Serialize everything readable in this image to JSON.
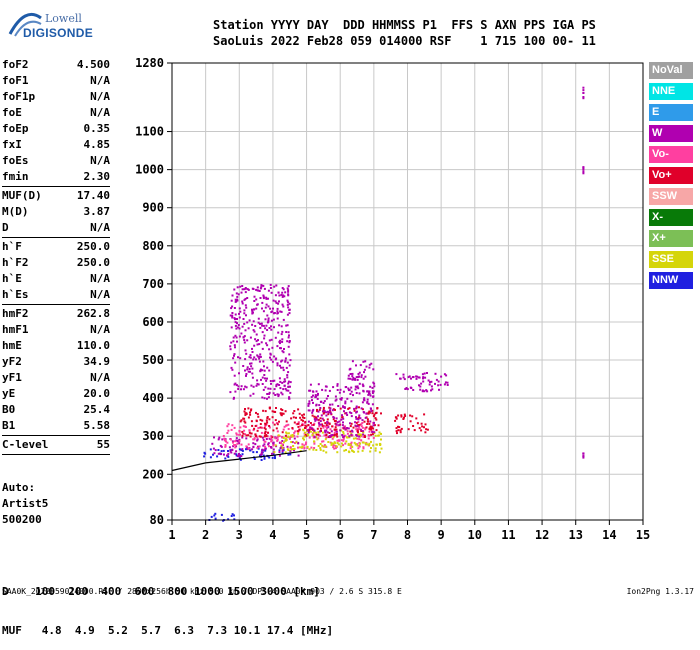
{
  "logo": {
    "line1": "Lowell",
    "line2": "DIGISONDE"
  },
  "header": {
    "line1": "Station YYYY DAY  DDD HHMMSS P1  FFS S AXN PPS IGA PS",
    "line2": "SaoLuis 2022 Feb28 059 014000 RSF    1 715 100 00- 11"
  },
  "params": [
    {
      "k": "foF2",
      "v": "4.500"
    },
    {
      "k": "foF1",
      "v": "N/A"
    },
    {
      "k": "foF1p",
      "v": "N/A"
    },
    {
      "k": "foE",
      "v": "N/A"
    },
    {
      "k": "foEp",
      "v": "0.35"
    },
    {
      "k": "fxI",
      "v": "4.85"
    },
    {
      "k": "foEs",
      "v": "N/A"
    },
    {
      "k": "fmin",
      "v": "2.30"
    },
    {
      "sep": true
    },
    {
      "k": "MUF(D)",
      "v": "17.40"
    },
    {
      "k": "M(D)",
      "v": "3.87"
    },
    {
      "k": "D",
      "v": "N/A"
    },
    {
      "sep": true
    },
    {
      "k": "h`F",
      "v": "250.0"
    },
    {
      "k": "h`F2",
      "v": "250.0"
    },
    {
      "k": "h`E",
      "v": "N/A"
    },
    {
      "k": "h`Es",
      "v": "N/A"
    },
    {
      "sep": true
    },
    {
      "k": "hmF2",
      "v": "262.8"
    },
    {
      "k": "hmF1",
      "v": "N/A"
    },
    {
      "k": "hmE",
      "v": "110.0"
    },
    {
      "k": "yF2",
      "v": "34.9"
    },
    {
      "k": "yF1",
      "v": "N/A"
    },
    {
      "k": "yE",
      "v": "20.0"
    },
    {
      "k": "B0",
      "v": "25.4"
    },
    {
      "k": "B1",
      "v": "5.58"
    },
    {
      "sep": true
    },
    {
      "k": "C-level",
      "v": "55"
    },
    {
      "sep": true
    }
  ],
  "auto": {
    "line1": "Auto:",
    "line2": "Artist5",
    "line3": "500200"
  },
  "bottom_table": {
    "row1": "D    100  200  400  600  800 1000 1500 3000 [km]",
    "row2": "MUF   4.8  4.9  5.2  5.7  6.3  7.3 10.1 17.4 [MHz]"
  },
  "footer": {
    "left": "SAA0K_2022059014000.RSF / 280fx256h 50 kHz 5.0 km / DPS-4 SAA0K 903 / 2.6 S 315.8 E",
    "right": "Ion2Png 1.3.17"
  },
  "legend": [
    {
      "label": "NoVal",
      "color": "#a0a0a0"
    },
    {
      "label": "NNE",
      "color": "#00e5e5"
    },
    {
      "label": "E",
      "color": "#2f9bea"
    },
    {
      "label": "W",
      "color": "#b000b0"
    },
    {
      "label": "Vo-",
      "color": "#ff3fa0"
    },
    {
      "label": "Vo+",
      "color": "#e0002a"
    },
    {
      "label": "SSW",
      "color": "#f7a7a7"
    },
    {
      "label": "X-",
      "color": "#087a08"
    },
    {
      "label": "X+",
      "color": "#7cbf56"
    },
    {
      "label": "SSE",
      "color": "#d5d50a"
    },
    {
      "label": "NNW",
      "color": "#2020e0"
    }
  ],
  "chart_data": {
    "type": "scatter",
    "xlabel": "",
    "ylabel": "",
    "xlim": [
      1,
      15
    ],
    "ylim": [
      80,
      1280
    ],
    "xticks": [
      1,
      2,
      3,
      4,
      5,
      6,
      7,
      8,
      9,
      10,
      11,
      12,
      13,
      14,
      15
    ],
    "yticks": [
      80,
      200,
      300,
      400,
      500,
      600,
      700,
      800,
      900,
      1000,
      1100,
      1280
    ],
    "clusters": [
      {
        "freq": [
          1.9,
          4.5
        ],
        "h": [
          240,
          270
        ],
        "color": "#2020e0"
      },
      {
        "freq": [
          2.1,
          4.8
        ],
        "h": [
          250,
          300
        ],
        "color": "#b000b0"
      },
      {
        "freq": [
          2.5,
          7.0
        ],
        "h": [
          270,
          340
        ],
        "color": "#ff3fa0"
      },
      {
        "freq": [
          3.0,
          7.2
        ],
        "h": [
          300,
          380
        ],
        "color": "#e0002a"
      },
      {
        "freq": [
          4.0,
          7.2
        ],
        "h": [
          260,
          320
        ],
        "color": "#d5d50a"
      },
      {
        "freq": [
          5.0,
          7.0
        ],
        "h": [
          300,
          440
        ],
        "color": "#b000b0"
      },
      {
        "freq": [
          2.7,
          4.5
        ],
        "h": [
          400,
          700
        ],
        "color": "#b000b0"
      },
      {
        "freq": [
          6.2,
          7.0
        ],
        "h": [
          420,
          500
        ],
        "color": "#b000b0"
      },
      {
        "freq": [
          7.6,
          9.2
        ],
        "h": [
          420,
          470
        ],
        "color": "#b000b0"
      },
      {
        "freq": [
          7.6,
          8.6
        ],
        "h": [
          310,
          360
        ],
        "color": "#e0002a"
      },
      {
        "freq": [
          2.0,
          2.9
        ],
        "h": [
          80,
          100
        ],
        "color": "#2020e0"
      },
      {
        "freq": [
          13.2,
          13.2
        ],
        "h": [
          240,
          260
        ],
        "color": "#b000b0"
      },
      {
        "freq": [
          13.2,
          13.2
        ],
        "h": [
          990,
          1010
        ],
        "color": "#b000b0"
      },
      {
        "freq": [
          13.2,
          13.2
        ],
        "h": [
          1180,
          1220
        ],
        "color": "#b000b0"
      }
    ],
    "trace": [
      [
        1.0,
        210
      ],
      [
        2.0,
        230
      ],
      [
        3.0,
        240
      ],
      [
        4.0,
        250
      ],
      [
        5.0,
        262
      ]
    ]
  }
}
